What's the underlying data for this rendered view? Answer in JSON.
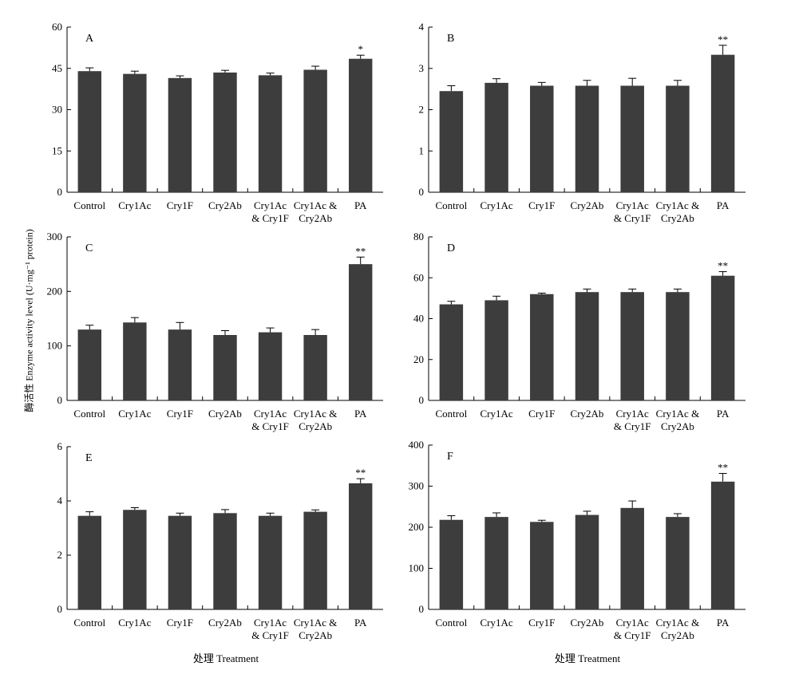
{
  "figure": {
    "y_axis_label": "酶活性 Enzyme activity level (U·mg⁻¹ protein)",
    "x_axis_label_left": "处理 Treatment",
    "x_axis_label_right": "处理 Treatment",
    "bar_color": "#3d3d3d"
  },
  "chart_data": [
    {
      "type": "bar",
      "panel": "A",
      "categories": [
        "Control",
        "Cry1Ac",
        "Cry1F",
        "Cry2Ab",
        "Cry1Ac & Cry1F",
        "Cry1Ac & Cry2Ab",
        "PA"
      ],
      "values": [
        44,
        43,
        41.5,
        43.5,
        42.5,
        44.5,
        48.5
      ],
      "errors": [
        1.2,
        1.0,
        0.8,
        0.8,
        0.8,
        1.3,
        1.3
      ],
      "significance": [
        "",
        "",
        "",
        "",
        "",
        "",
        "*"
      ],
      "ylim": [
        0,
        60
      ],
      "yticks": [
        0,
        15,
        30,
        45,
        60
      ]
    },
    {
      "type": "bar",
      "panel": "B",
      "categories": [
        "Control",
        "Cry1Ac",
        "Cry1F",
        "Cry2Ab",
        "Cry1Ac & Cry1F",
        "Cry1Ac & Cry2Ab",
        "PA"
      ],
      "values": [
        2.45,
        2.65,
        2.58,
        2.58,
        2.58,
        2.58,
        3.33
      ],
      "errors": [
        0.13,
        0.1,
        0.08,
        0.13,
        0.18,
        0.13,
        0.23
      ],
      "significance": [
        "",
        "",
        "",
        "",
        "",
        "",
        "**"
      ],
      "ylim": [
        0,
        4
      ],
      "yticks": [
        0,
        1,
        2,
        3,
        4
      ]
    },
    {
      "type": "bar",
      "panel": "C",
      "categories": [
        "Control",
        "Cry1Ac",
        "Cry1F",
        "Cry2Ab",
        "Cry1Ac & Cry1F",
        "Cry1Ac & Cry2Ab",
        "PA"
      ],
      "values": [
        130,
        143,
        130,
        120,
        125,
        120,
        250
      ],
      "errors": [
        8,
        9,
        13,
        8,
        8,
        10,
        13
      ],
      "significance": [
        "",
        "",
        "",
        "",
        "",
        "",
        "**"
      ],
      "ylim": [
        0,
        300
      ],
      "yticks": [
        0,
        100,
        200,
        300
      ]
    },
    {
      "type": "bar",
      "panel": "D",
      "categories": [
        "Control",
        "Cry1Ac",
        "Cry1F",
        "Cry2Ab",
        "Cry1Ac & Cry1F",
        "Cry1Ac & Cry2Ab",
        "PA"
      ],
      "values": [
        47,
        49,
        52,
        53,
        53,
        53,
        61
      ],
      "errors": [
        1.5,
        2,
        0.5,
        1.5,
        1.5,
        1.5,
        2
      ],
      "significance": [
        "",
        "",
        "",
        "",
        "",
        "",
        "**"
      ],
      "ylim": [
        0,
        80
      ],
      "yticks": [
        0,
        20,
        40,
        60,
        80
      ]
    },
    {
      "type": "bar",
      "panel": "E",
      "categories": [
        "Control",
        "Cry1Ac",
        "Cry1F",
        "Cry2Ab",
        "Cry1Ac & Cry1F",
        "Cry1Ac & Cry2Ab",
        "PA"
      ],
      "values": [
        3.45,
        3.67,
        3.45,
        3.55,
        3.45,
        3.6,
        4.65
      ],
      "errors": [
        0.15,
        0.08,
        0.1,
        0.13,
        0.1,
        0.07,
        0.17
      ],
      "significance": [
        "",
        "",
        "",
        "",
        "",
        "",
        "**"
      ],
      "ylim": [
        0,
        6
      ],
      "yticks": [
        0,
        2,
        4,
        6
      ]
    },
    {
      "type": "bar",
      "panel": "F",
      "categories": [
        "Control",
        "Cry1Ac",
        "Cry1F",
        "Cry2Ab",
        "Cry1Ac & Cry1F",
        "Cry1Ac & Cry2Ab",
        "PA"
      ],
      "values": [
        218,
        225,
        213,
        230,
        247,
        225,
        311
      ],
      "errors": [
        10,
        10,
        4,
        9,
        17,
        8,
        20
      ],
      "significance": [
        "",
        "",
        "",
        "",
        "",
        "",
        "**"
      ],
      "ylim": [
        0,
        400
      ],
      "yticks": [
        0,
        100,
        200,
        300,
        400
      ]
    }
  ]
}
